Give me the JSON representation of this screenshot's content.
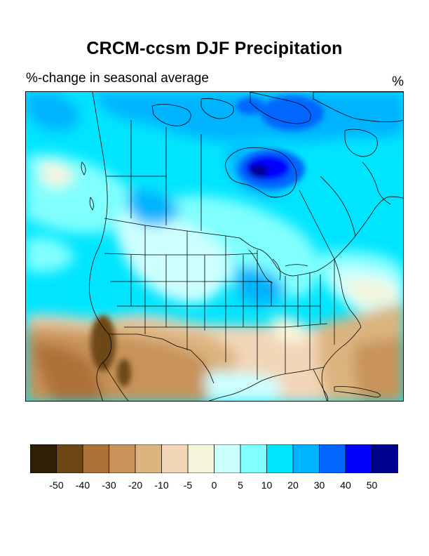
{
  "title": "CRCM-ccsm DJF Precipitation",
  "subtitle_left": "%-change in seasonal average",
  "subtitle_right": "%",
  "colorbar": {
    "colors": [
      "#2f1f07",
      "#6e4717",
      "#ad7138",
      "#c7935a",
      "#dcb47f",
      "#f3d6b8",
      "#f5f5dc",
      "#ccffff",
      "#80ffff",
      "#00e5ff",
      "#00b3ff",
      "#0066ff",
      "#0000ff",
      "#00008f"
    ],
    "labels": [
      "-50",
      "-40",
      "-30",
      "-20",
      "-10",
      "-5",
      "0",
      "5",
      "10",
      "20",
      "30",
      "40",
      "50"
    ]
  },
  "map": {
    "region": "North America",
    "field": "DJF precipitation % change",
    "boundaries": [
      "coastlines",
      "country borders",
      "US state borders",
      "Canadian provinces"
    ]
  }
}
